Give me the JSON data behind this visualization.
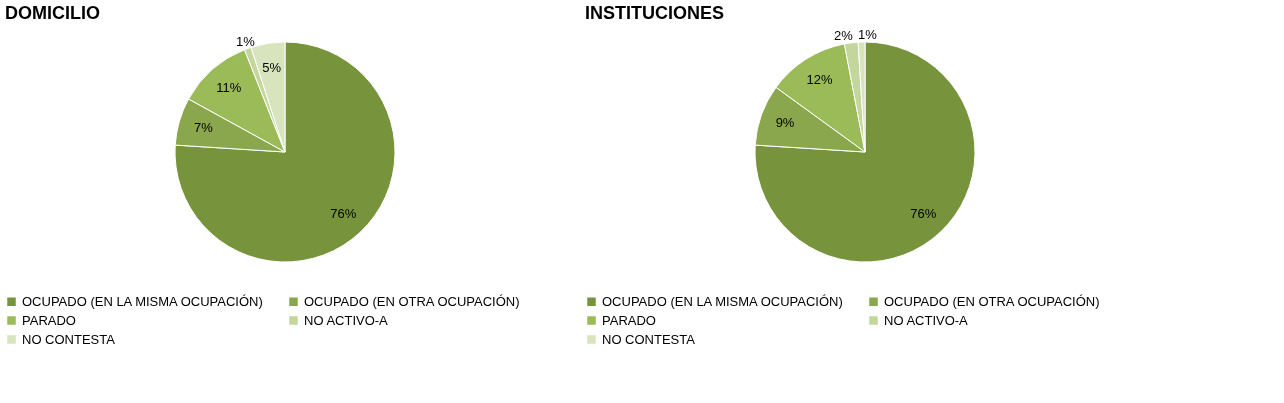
{
  "chart_data": [
    {
      "type": "pie",
      "title": "DOMICILIO",
      "categories": [
        "OCUPADO (EN LA MISMA OCUPACIÓN)",
        "OCUPADO (EN OTRA OCUPACIÓN)",
        "PARADO",
        "NO ACTIVO-A",
        "NO CONTESTA"
      ],
      "values": [
        76,
        7,
        11,
        1,
        5
      ],
      "value_labels": [
        "76%",
        "7%",
        "11%",
        "1%",
        "5%"
      ],
      "colors": [
        "#77933c",
        "#8aa74d",
        "#9bbb59",
        "#c3d69b",
        "#d7e4bd"
      ],
      "legend": "bottom"
    },
    {
      "type": "pie",
      "title": "INSTITUCIONES",
      "categories": [
        "OCUPADO (EN LA MISMA OCUPACIÓN)",
        "OCUPADO (EN OTRA OCUPACIÓN)",
        "PARADO",
        "NO ACTIVO-A",
        "NO CONTESTA"
      ],
      "values": [
        76,
        9,
        12,
        2,
        1
      ],
      "value_labels": [
        "76%",
        "9%",
        "12%",
        "2%",
        "1%"
      ],
      "colors": [
        "#77933c",
        "#8aa74d",
        "#9bbb59",
        "#c3d69b",
        "#d7e4bd"
      ],
      "legend": "bottom"
    }
  ]
}
